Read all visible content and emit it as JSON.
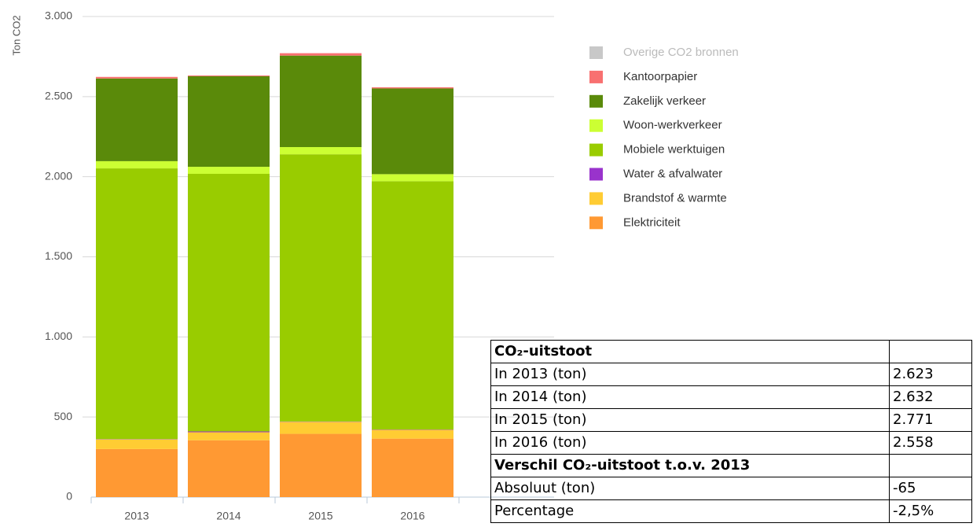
{
  "chart_data": {
    "type": "bar",
    "stacked": true,
    "y_label": "Ton CO2",
    "categories": [
      "2013",
      "2014",
      "2015",
      "2016"
    ],
    "series": [
      {
        "name": "Elektriciteit",
        "color": "#ff9933",
        "values": [
          300,
          355,
          395,
          365
        ]
      },
      {
        "name": "Brandstof & warmte",
        "color": "#ffcc33",
        "values": [
          60,
          50,
          75,
          55
        ]
      },
      {
        "name": "Water & afvalwater",
        "color": "#9933cc",
        "values": [
          2,
          5,
          2,
          2
        ]
      },
      {
        "name": "Mobiele werktuigen",
        "color": "#99cc00",
        "values": [
          1690,
          1608,
          1668,
          1550
        ]
      },
      {
        "name": "Woon-werkverkeer",
        "color": "#ccff33",
        "values": [
          45,
          44,
          45,
          44
        ]
      },
      {
        "name": "Zakelijk verkeer",
        "color": "#5a8a0a",
        "values": [
          516,
          565,
          571,
          535
        ]
      },
      {
        "name": "Kantoorpapier",
        "color": "#f87070",
        "values": [
          10,
          5,
          15,
          7
        ]
      },
      {
        "name": "Overige CO2 bronnen",
        "color": "#c8c8c8",
        "values": [
          0,
          0,
          0,
          0
        ]
      }
    ],
    "ylim": [
      0,
      3000
    ],
    "yticks": [
      0,
      500,
      {
        "value": 1000,
        "label": "1.000"
      },
      {
        "value": 1500,
        "label": "1.500"
      },
      {
        "value": 2000,
        "label": "2.000"
      },
      {
        "value": 2500,
        "label": "2.500"
      },
      {
        "value": 3000,
        "label": "3.000"
      }
    ],
    "grid": true,
    "legend": "right"
  },
  "table": {
    "rows": [
      [
        "CO₂-uitstoot",
        ""
      ],
      [
        "In 2013 (ton)",
        "2.623"
      ],
      [
        "In 2014 (ton)",
        "2.632"
      ],
      [
        "In 2015 (ton)",
        "2.771"
      ],
      [
        "In 2016 (ton)",
        "2.558"
      ],
      [
        "Verschil CO₂-uitstoot t.o.v. 2013",
        ""
      ],
      [
        "Absoluut (ton)",
        "-65"
      ],
      [
        "Percentage",
        "-2,5%"
      ]
    ]
  }
}
